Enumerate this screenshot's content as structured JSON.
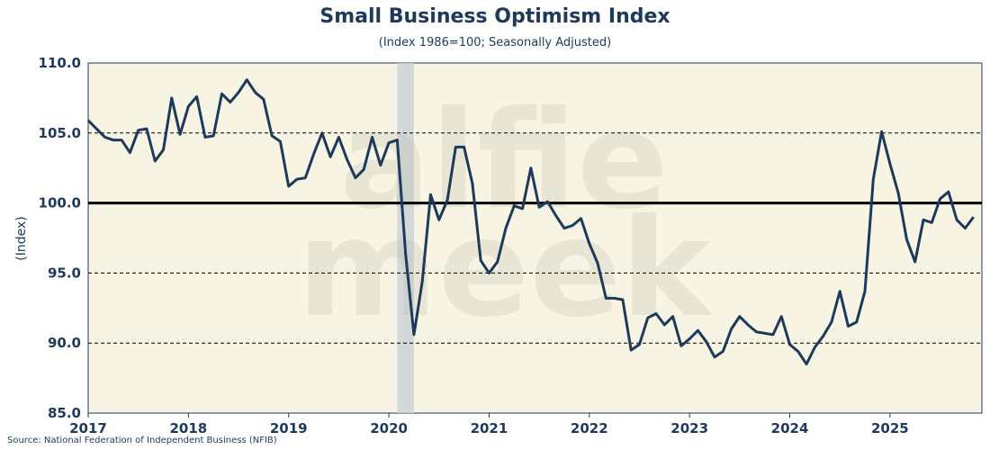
{
  "chart_data": {
    "type": "line",
    "title": "Small Business Optimism Index",
    "subtitle": "(Index 1986=100; Seasonally Adjusted)",
    "ylabel": "(Index)",
    "source": "Source: National Federation of Independent Business (NFIB)",
    "watermark": [
      "alfie",
      "meek"
    ],
    "ylim": [
      85.0,
      110.0
    ],
    "yticks": [
      "85.0",
      "90.0",
      "95.0",
      "100.0",
      "105.0",
      "110.0"
    ],
    "xlim": [
      2017.0,
      2025.917
    ],
    "xticks": [
      "2017",
      "2018",
      "2019",
      "2020",
      "2021",
      "2022",
      "2023",
      "2024",
      "2025"
    ],
    "grid": "dashed-horizontal",
    "reference_line": 100.0,
    "shaded_period": {
      "start": 2020.083,
      "end": 2020.25
    },
    "series": [
      {
        "x_start": "2017-01",
        "frequency": "monthly",
        "values": [
          105.9,
          105.3,
          104.7,
          104.5,
          104.5,
          103.6,
          105.2,
          105.3,
          103.0,
          103.8,
          107.5,
          104.9,
          106.9,
          107.6,
          104.7,
          104.8,
          107.8,
          107.2,
          107.9,
          108.8,
          107.9,
          107.4,
          104.8,
          104.4,
          101.2,
          101.7,
          101.8,
          103.5,
          105.0,
          103.3,
          104.7,
          103.1,
          101.8,
          102.4,
          104.7,
          102.7,
          104.3,
          104.5,
          96.4,
          90.6,
          94.4,
          100.6,
          98.8,
          100.2,
          104.0,
          104.0,
          101.4,
          95.9,
          95.0,
          95.8,
          98.2,
          99.8,
          99.6,
          102.5,
          99.7,
          100.1,
          99.1,
          98.2,
          98.4,
          98.9,
          97.1,
          95.7,
          93.2,
          93.2,
          93.1,
          89.5,
          89.9,
          91.8,
          92.1,
          91.3,
          91.9,
          89.8,
          90.3,
          90.9,
          90.1,
          89.0,
          89.4,
          91.0,
          91.9,
          91.3,
          90.8,
          90.7,
          90.6,
          91.9,
          89.9,
          89.4,
          88.5,
          89.7,
          90.5,
          91.5,
          93.7,
          91.2,
          91.5,
          93.7,
          101.7,
          105.1,
          102.8,
          100.7,
          97.4,
          95.8,
          98.8,
          98.6,
          100.3,
          100.8,
          98.8,
          98.2,
          99.0
        ]
      }
    ]
  }
}
